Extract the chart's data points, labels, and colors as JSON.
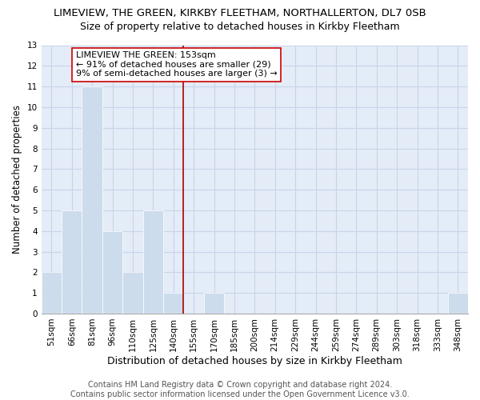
{
  "title": "LIMEVIEW, THE GREEN, KIRKBY FLEETHAM, NORTHALLERTON, DL7 0SB",
  "subtitle": "Size of property relative to detached houses in Kirkby Fleetham",
  "xlabel": "Distribution of detached houses by size in Kirkby Fleetham",
  "ylabel": "Number of detached properties",
  "bin_labels": [
    "51sqm",
    "66sqm",
    "81sqm",
    "96sqm",
    "110sqm",
    "125sqm",
    "140sqm",
    "155sqm",
    "170sqm",
    "185sqm",
    "200sqm",
    "214sqm",
    "229sqm",
    "244sqm",
    "259sqm",
    "274sqm",
    "289sqm",
    "303sqm",
    "318sqm",
    "333sqm",
    "348sqm"
  ],
  "bar_heights": [
    2,
    5,
    11,
    4,
    2,
    5,
    1,
    0,
    1,
    0,
    0,
    0,
    0,
    0,
    0,
    0,
    0,
    0,
    0,
    0,
    1
  ],
  "bar_color": "#cddcec",
  "reference_line_x": 7,
  "reference_line_color": "#aa0000",
  "annotation_text_line1": "LIMEVIEW THE GREEN: 153sqm",
  "annotation_text_line2": "← 91% of detached houses are smaller (29)",
  "annotation_text_line3": "9% of semi-detached houses are larger (3) →",
  "annotation_box_facecolor": "white",
  "annotation_box_edgecolor": "#cc0000",
  "ylim": [
    0,
    13
  ],
  "yticks": [
    0,
    1,
    2,
    3,
    4,
    5,
    6,
    7,
    8,
    9,
    10,
    11,
    12,
    13
  ],
  "footer_text": "Contains HM Land Registry data © Crown copyright and database right 2024.\nContains public sector information licensed under the Open Government Licence v3.0.",
  "title_fontsize": 9.5,
  "subtitle_fontsize": 9,
  "xlabel_fontsize": 9,
  "ylabel_fontsize": 8.5,
  "tick_fontsize": 7.5,
  "annotation_fontsize": 8,
  "footer_fontsize": 7,
  "grid_color": "#c8d4e8",
  "background_color": "#e4ecf8"
}
